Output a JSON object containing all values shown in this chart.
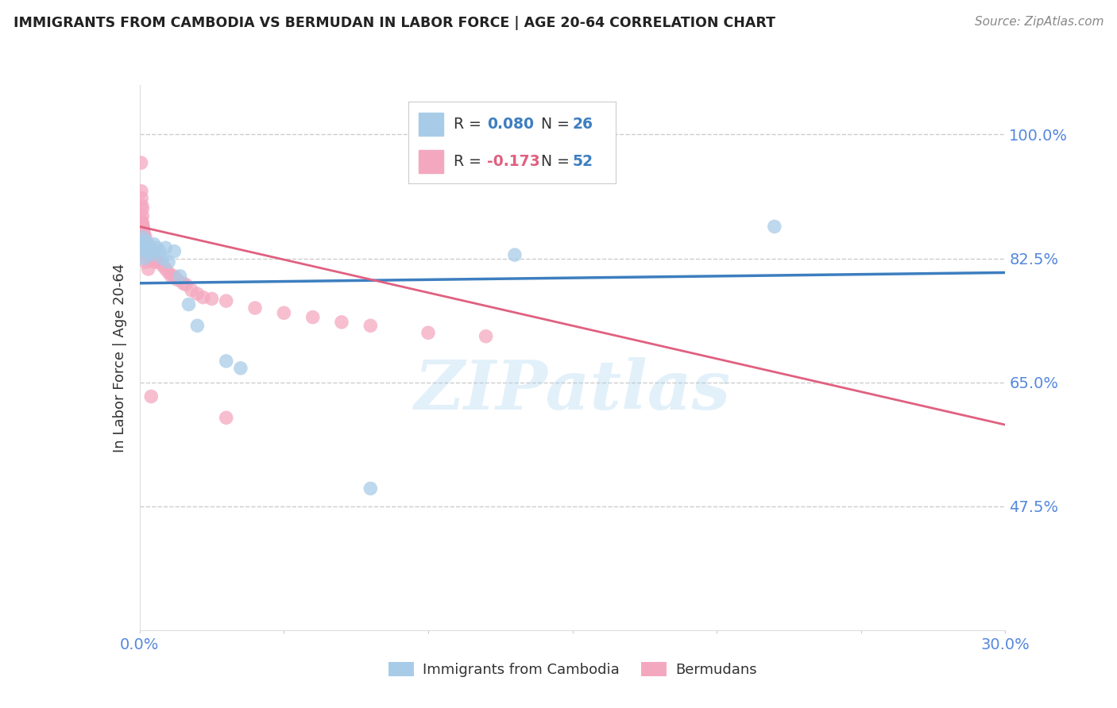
{
  "title": "IMMIGRANTS FROM CAMBODIA VS BERMUDAN IN LABOR FORCE | AGE 20-64 CORRELATION CHART",
  "source": "Source: ZipAtlas.com",
  "ylabel": "In Labor Force | Age 20-64",
  "xlim": [
    0.0,
    0.3
  ],
  "ylim": [
    0.3,
    1.07
  ],
  "y_ticks": [
    0.475,
    0.65,
    0.825,
    1.0
  ],
  "y_tick_labels": [
    "47.5%",
    "65.0%",
    "82.5%",
    "100.0%"
  ],
  "x_ticks": [
    0.0,
    0.05,
    0.1,
    0.15,
    0.2,
    0.25,
    0.3
  ],
  "x_tick_labels": [
    "0.0%",
    "",
    "",
    "",
    "",
    "",
    "30.0%"
  ],
  "watermark": "ZIPatlas",
  "blue_color": "#a8cce8",
  "pink_color": "#f4a8c0",
  "blue_line_color": "#3d7ebf",
  "pink_line_color": "#e06080",
  "grid_color": "#cccccc",
  "axis_color": "#5588dd",
  "title_color": "#222222",
  "source_color": "#888888",
  "legend_R_color": "#3d7ebf",
  "legend_N_color": "#3d7ebf",
  "legend_R2_color": "#e06080",
  "legend_N2_color": "#3d7ebf",
  "cambodia_x": [
    0.0005,
    0.001,
    0.001,
    0.0015,
    0.002,
    0.002,
    0.003,
    0.003,
    0.004,
    0.004,
    0.005,
    0.005,
    0.006,
    0.007,
    0.008,
    0.009,
    0.01,
    0.012,
    0.014,
    0.017,
    0.02,
    0.03,
    0.035,
    0.08,
    0.13,
    0.22
  ],
  "cambodia_y": [
    0.845,
    0.84,
    0.855,
    0.825,
    0.85,
    0.835,
    0.845,
    0.835,
    0.84,
    0.83,
    0.835,
    0.845,
    0.84,
    0.835,
    0.825,
    0.84,
    0.82,
    0.835,
    0.8,
    0.76,
    0.73,
    0.68,
    0.67,
    0.5,
    0.83,
    0.87
  ],
  "bermuda_x": [
    0.0003,
    0.0005,
    0.0006,
    0.0007,
    0.0008,
    0.001,
    0.001,
    0.001,
    0.0012,
    0.0014,
    0.0015,
    0.002,
    0.002,
    0.002,
    0.003,
    0.003,
    0.003,
    0.004,
    0.004,
    0.005,
    0.005,
    0.006,
    0.007,
    0.008,
    0.009,
    0.01,
    0.011,
    0.012,
    0.013,
    0.015,
    0.016,
    0.018,
    0.02,
    0.022,
    0.025,
    0.03,
    0.04,
    0.05,
    0.06,
    0.07,
    0.08,
    0.1,
    0.12,
    0.0006,
    0.0008,
    0.001,
    0.001,
    0.0015,
    0.002,
    0.003,
    0.004,
    0.03
  ],
  "bermuda_y": [
    0.87,
    0.96,
    0.92,
    0.91,
    0.9,
    0.895,
    0.885,
    0.875,
    0.87,
    0.865,
    0.86,
    0.855,
    0.845,
    0.835,
    0.845,
    0.835,
    0.825,
    0.83,
    0.825,
    0.825,
    0.82,
    0.82,
    0.82,
    0.815,
    0.81,
    0.805,
    0.8,
    0.8,
    0.795,
    0.79,
    0.788,
    0.78,
    0.775,
    0.77,
    0.768,
    0.765,
    0.755,
    0.748,
    0.742,
    0.735,
    0.73,
    0.72,
    0.715,
    0.88,
    0.875,
    0.87,
    0.86,
    0.84,
    0.82,
    0.81,
    0.63,
    0.6
  ],
  "blue_line_x0": 0.0,
  "blue_line_y0": 0.79,
  "blue_line_x1": 0.3,
  "blue_line_y1": 0.805,
  "pink_line_x0": 0.0,
  "pink_line_y0": 0.87,
  "pink_line_x1": 0.3,
  "pink_line_y1": 0.59
}
